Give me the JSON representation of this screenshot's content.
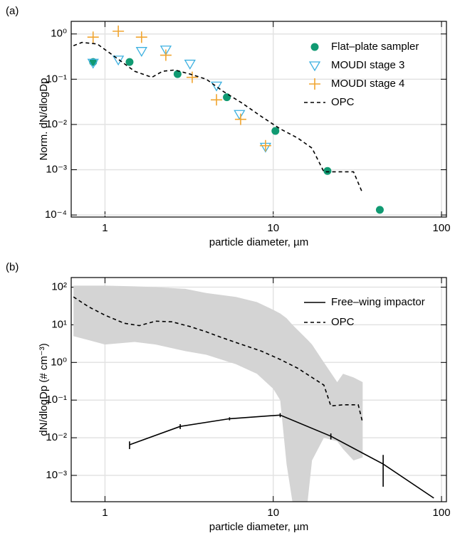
{
  "chart_data": [
    {
      "type": "line",
      "panel_label": "(a)",
      "xlabel": "particle diameter, µm",
      "ylabel": "Norm. dN/dlogDp",
      "xlog": true,
      "ylog": true,
      "grid": true,
      "legend": "upper right",
      "xlim": [
        0.63,
        107
      ],
      "ylim": [
        9e-05,
        1.9
      ],
      "xticks": [
        1,
        10,
        100
      ],
      "yticks": [
        {
          "value": 0.0001,
          "label": "10⁻⁴"
        },
        {
          "value": 0.001,
          "label": "10⁻³"
        },
        {
          "value": 0.01,
          "label": "10⁻²"
        },
        {
          "value": 0.1,
          "label": "10⁻¹"
        },
        {
          "value": 1,
          "label": "10⁰"
        }
      ],
      "series": [
        {
          "name": "Flat–plate sampler",
          "color": "#109a72",
          "marker": "circle",
          "x": [
            0.85,
            1.4,
            2.7,
            5.3,
            10.3,
            21,
            43
          ],
          "values": [
            0.24,
            0.24,
            0.13,
            0.04,
            0.0072,
            0.00094,
            0.00013
          ]
        },
        {
          "name": "MOUDI stage 3",
          "color": "#3cb0e0",
          "marker": "triangle-down",
          "x": [
            0.85,
            1.2,
            1.65,
            2.3,
            3.2,
            4.6,
            6.3,
            9
          ],
          "values": [
            0.23,
            0.27,
            0.42,
            0.45,
            0.22,
            0.072,
            0.017,
            0.0032
          ]
        },
        {
          "name": "MOUDI stage 4",
          "color": "#f0a530",
          "marker": "plus",
          "x": [
            0.85,
            1.2,
            1.65,
            2.3,
            3.3,
            4.6,
            6.4,
            9
          ],
          "values": [
            0.85,
            1.15,
            0.85,
            0.34,
            0.11,
            0.035,
            0.013,
            0.0034
          ]
        },
        {
          "name": "OPC",
          "color": "#000000",
          "dash": true,
          "x": [
            0.65,
            0.73,
            0.9,
            1.1,
            1.5,
            1.9,
            2.2,
            2.6,
            3.2,
            4,
            5,
            6.5,
            8.5,
            11,
            14,
            17,
            20,
            25,
            30,
            34
          ],
          "values": [
            0.55,
            0.65,
            0.6,
            0.35,
            0.15,
            0.11,
            0.15,
            0.16,
            0.13,
            0.1,
            0.055,
            0.03,
            0.015,
            0.008,
            0.005,
            0.003,
            0.0009,
            0.0009,
            0.0009,
            0.0003
          ]
        }
      ]
    },
    {
      "type": "line",
      "panel_label": "(b)",
      "xlabel": "particle diameter, µm",
      "ylabel": "dN/dlogDp (# cm⁻³)",
      "xlog": true,
      "ylog": true,
      "grid": true,
      "legend": "upper right",
      "xlim": [
        0.63,
        107
      ],
      "ylim": [
        0.0002,
        180
      ],
      "xticks": [
        1,
        10,
        100
      ],
      "yticks": [
        {
          "value": 0.001,
          "label": "10⁻³"
        },
        {
          "value": 0.01,
          "label": "10⁻²"
        },
        {
          "value": 0.1,
          "label": "10⁻¹"
        },
        {
          "value": 1,
          "label": "10⁰"
        },
        {
          "value": 10,
          "label": "10¹"
        },
        {
          "value": 100,
          "label": "10²"
        }
      ],
      "band": {
        "color": "#d4d4d4",
        "x": [
          0.65,
          1,
          1.5,
          2,
          3,
          4,
          6,
          8,
          10,
          11,
          12,
          13,
          16,
          17,
          20,
          24,
          26,
          30,
          34
        ],
        "upper": [
          110,
          110,
          105,
          100,
          90,
          70,
          55,
          40,
          25,
          20,
          15,
          10,
          4,
          3,
          1,
          0.3,
          0.5,
          0.4,
          0.3
        ],
        "lower": [
          5,
          3,
          3.5,
          3,
          2,
          1.6,
          0.9,
          0.5,
          0.2,
          0.1,
          0.002,
          0.0002,
          0.0002,
          0.0025,
          0.01,
          0.008,
          0.005,
          0.0025,
          0.003
        ]
      },
      "series": [
        {
          "name": "Free–wing impactor",
          "color": "#000000",
          "x": [
            1.4,
            2.8,
            5.5,
            11,
            22,
            45,
            90
          ],
          "values": [
            0.0065,
            0.02,
            0.032,
            0.04,
            0.011,
            0.002,
            0.00025
          ],
          "errors": [
            0.0015,
            0.003,
            0.003,
            0.005,
            0.002,
            0.0015,
            null
          ]
        },
        {
          "name": "OPC",
          "color": "#000000",
          "dash": true,
          "x": [
            0.65,
            0.8,
            1,
            1.3,
            1.6,
            2,
            2.5,
            3.2,
            4,
            5,
            6.5,
            8.5,
            11,
            14,
            17,
            20,
            22,
            26,
            32,
            34
          ],
          "values": [
            55,
            30,
            18,
            11,
            9.5,
            12.5,
            12,
            9,
            6.5,
            4.5,
            3,
            2,
            1.2,
            0.7,
            0.4,
            0.25,
            0.07,
            0.075,
            0.075,
            0.025
          ]
        }
      ]
    }
  ]
}
